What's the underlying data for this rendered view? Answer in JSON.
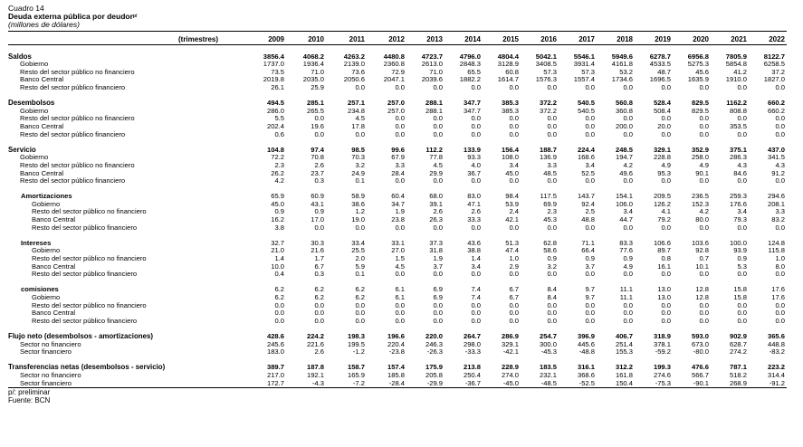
{
  "header": {
    "label": "Cuadro 14",
    "title": "Deuda externa pública por deudor",
    "title_sup": "p/",
    "subtitle": "(millones de dólares)"
  },
  "table": {
    "period_label": "(trimestres)",
    "years": [
      "2009",
      "2010",
      "2011",
      "2012",
      "2013",
      "2014",
      "2015",
      "2016",
      "2017",
      "2018",
      "2019",
      "2020",
      "2021",
      "2022"
    ],
    "rows": [
      {
        "type": "sec",
        "label": "Saldos",
        "values": [
          "3856.4",
          "4068.2",
          "4263.2",
          "4480.8",
          "4723.7",
          "4796.0",
          "4804.4",
          "5042.1",
          "5546.1",
          "5949.6",
          "6278.7",
          "6956.8",
          "7805.9",
          "8122.7"
        ]
      },
      {
        "type": "det",
        "label": "Gobierno",
        "values": [
          "1737.0",
          "1936.4",
          "2139.0",
          "2360.8",
          "2613.0",
          "2848.3",
          "3128.9",
          "3408.5",
          "3931.4",
          "4161.8",
          "4533.5",
          "5275.3",
          "5854.8",
          "6258.5"
        ]
      },
      {
        "type": "det",
        "label": "Resto del sector público no financiero",
        "values": [
          "73.5",
          "71.0",
          "73.6",
          "72.9",
          "71.0",
          "65.5",
          "60.8",
          "57.3",
          "57.3",
          "53.2",
          "48.7",
          "45.6",
          "41.2",
          "37.2"
        ]
      },
      {
        "type": "det",
        "label": "Banco Central",
        "values": [
          "2019.8",
          "2035.0",
          "2050.6",
          "2047.1",
          "2039.6",
          "1882.2",
          "1614.7",
          "1576.3",
          "1557.4",
          "1734.6",
          "1696.5",
          "1635.9",
          "1910.0",
          "1827.0"
        ]
      },
      {
        "type": "det",
        "label": "Resto del sector público financiero",
        "values": [
          "26.1",
          "25.9",
          "0.0",
          "0.0",
          "0.0",
          "0.0",
          "0.0",
          "0.0",
          "0.0",
          "0.0",
          "0.0",
          "0.0",
          "0.0",
          "0.0"
        ]
      },
      {
        "type": "sp"
      },
      {
        "type": "sec",
        "label": "Desembolsos",
        "values": [
          "494.5",
          "285.1",
          "257.1",
          "257.0",
          "288.1",
          "347.7",
          "385.3",
          "372.2",
          "540.5",
          "560.8",
          "528.4",
          "829.5",
          "1162.2",
          "660.2"
        ]
      },
      {
        "type": "det",
        "label": "Gobierno",
        "values": [
          "286.0",
          "265.5",
          "234.8",
          "257.0",
          "288.1",
          "347.7",
          "385.3",
          "372.2",
          "540.5",
          "360.8",
          "508.4",
          "829.5",
          "808.8",
          "660.2"
        ]
      },
      {
        "type": "det",
        "label": "Resto del sector público no financiero",
        "values": [
          "5.5",
          "0.0",
          "4.5",
          "0.0",
          "0.0",
          "0.0",
          "0.0",
          "0.0",
          "0.0",
          "0.0",
          "0.0",
          "0.0",
          "0.0",
          "0.0"
        ]
      },
      {
        "type": "det",
        "label": "Banco Central",
        "values": [
          "202.4",
          "19.6",
          "17.8",
          "0.0",
          "0.0",
          "0.0",
          "0.0",
          "0.0",
          "0.0",
          "200.0",
          "20.0",
          "0.0",
          "353.5",
          "0.0"
        ]
      },
      {
        "type": "det",
        "label": "Resto del sector público financiero",
        "values": [
          "0.6",
          "0.0",
          "0.0",
          "0.0",
          "0.0",
          "0.0",
          "0.0",
          "0.0",
          "0.0",
          "0.0",
          "0.0",
          "0.0",
          "0.0",
          "0.0"
        ]
      },
      {
        "type": "sp"
      },
      {
        "type": "sec",
        "label": "Servicio",
        "values": [
          "104.8",
          "97.4",
          "98.5",
          "99.6",
          "112.2",
          "133.9",
          "156.4",
          "188.7",
          "224.4",
          "248.5",
          "329.1",
          "352.9",
          "375.1",
          "437.0"
        ]
      },
      {
        "type": "det",
        "label": "Gobierno",
        "values": [
          "72.2",
          "70.8",
          "70.3",
          "67.9",
          "77.8",
          "93.3",
          "108.0",
          "136.9",
          "168.6",
          "194.7",
          "228.8",
          "258.0",
          "286.3",
          "341.5"
        ]
      },
      {
        "type": "det",
        "label": "Resto del sector público no financiero",
        "values": [
          "2.3",
          "2.6",
          "3.2",
          "3.3",
          "4.5",
          "4.0",
          "3.4",
          "3.3",
          "3.4",
          "4.2",
          "4.9",
          "4.9",
          "4.3",
          "4.3"
        ]
      },
      {
        "type": "det",
        "label": "Banco Central",
        "values": [
          "26.2",
          "23.7",
          "24.9",
          "28.4",
          "29.9",
          "36.7",
          "45.0",
          "48.5",
          "52.5",
          "49.6",
          "95.3",
          "90.1",
          "84.6",
          "91.2"
        ]
      },
      {
        "type": "det",
        "label": "Resto del sector público financiero",
        "values": [
          "4.2",
          "0.3",
          "0.1",
          "0.0",
          "0.0",
          "0.0",
          "0.0",
          "0.0",
          "0.0",
          "0.0",
          "0.0",
          "0.0",
          "0.0",
          "0.0"
        ]
      },
      {
        "type": "sp"
      },
      {
        "type": "sub",
        "label": "Amortizaciones",
        "values": [
          "65.9",
          "60.9",
          "58.9",
          "60.4",
          "68.0",
          "83.0",
          "98.4",
          "117.5",
          "143.7",
          "154.1",
          "209.5",
          "236.5",
          "259.3",
          "294.6"
        ]
      },
      {
        "type": "det2",
        "label": "Gobierno",
        "values": [
          "45.0",
          "43.1",
          "38.6",
          "34.7",
          "39.1",
          "47.1",
          "53.9",
          "69.9",
          "92.4",
          "106.0",
          "126.2",
          "152.3",
          "176.6",
          "208.1"
        ]
      },
      {
        "type": "det2",
        "label": "Resto del sector público no financiero",
        "values": [
          "0.9",
          "0.9",
          "1.2",
          "1.9",
          "2.6",
          "2.6",
          "2.4",
          "2.3",
          "2.5",
          "3.4",
          "4.1",
          "4.2",
          "3.4",
          "3.3"
        ]
      },
      {
        "type": "det2",
        "label": "Banco Central",
        "values": [
          "16.2",
          "17.0",
          "19.0",
          "23.8",
          "26.3",
          "33.3",
          "42.1",
          "45.3",
          "48.8",
          "44.7",
          "79.2",
          "80.0",
          "79.3",
          "83.2"
        ]
      },
      {
        "type": "det2",
        "label": "Resto del sector público financiero",
        "values": [
          "3.8",
          "0.0",
          "0.0",
          "0.0",
          "0.0",
          "0.0",
          "0.0",
          "0.0",
          "0.0",
          "0.0",
          "0.0",
          "0.0",
          "0.0",
          "0.0"
        ]
      },
      {
        "type": "sp"
      },
      {
        "type": "sub",
        "label": "Intereses",
        "values": [
          "32.7",
          "30.3",
          "33.4",
          "33.1",
          "37.3",
          "43.6",
          "51.3",
          "62.8",
          "71.1",
          "83.3",
          "106.6",
          "103.6",
          "100.0",
          "124.8"
        ]
      },
      {
        "type": "det2",
        "label": "Gobierno",
        "values": [
          "21.0",
          "21.6",
          "25.5",
          "27.0",
          "31.8",
          "38.8",
          "47.4",
          "58.6",
          "66.4",
          "77.6",
          "89.7",
          "92.8",
          "93.9",
          "115.8"
        ]
      },
      {
        "type": "det2",
        "label": "Resto del sector público no financiero",
        "values": [
          "1.4",
          "1.7",
          "2.0",
          "1.5",
          "1.9",
          "1.4",
          "1.0",
          "0.9",
          "0.9",
          "0.9",
          "0.8",
          "0.7",
          "0.9",
          "1.0"
        ]
      },
      {
        "type": "det2",
        "label": "Banco Central",
        "values": [
          "10.0",
          "6.7",
          "5.9",
          "4.5",
          "3.7",
          "3.4",
          "2.9",
          "3.2",
          "3.7",
          "4.9",
          "16.1",
          "10.1",
          "5.3",
          "8.0"
        ]
      },
      {
        "type": "det2",
        "label": "Resto del sector público financiero",
        "values": [
          "0.4",
          "0.3",
          "0.1",
          "0.0",
          "0.0",
          "0.0",
          "0.0",
          "0.0",
          "0.0",
          "0.0",
          "0.0",
          "0.0",
          "0.0",
          "0.0"
        ]
      },
      {
        "type": "sp"
      },
      {
        "type": "sub",
        "label": "comisiones",
        "values": [
          "6.2",
          "6.2",
          "6.2",
          "6.1",
          "6.9",
          "7.4",
          "6.7",
          "8.4",
          "9.7",
          "11.1",
          "13.0",
          "12.8",
          "15.8",
          "17.6"
        ]
      },
      {
        "type": "det2",
        "label": "Gobierno",
        "values": [
          "6.2",
          "6.2",
          "6.2",
          "6.1",
          "6.9",
          "7.4",
          "6.7",
          "8.4",
          "9.7",
          "11.1",
          "13.0",
          "12.8",
          "15.8",
          "17.6"
        ]
      },
      {
        "type": "det2",
        "label": "Resto del sector público no financiero",
        "values": [
          "0.0",
          "0.0",
          "0.0",
          "0.0",
          "0.0",
          "0.0",
          "0.0",
          "0.0",
          "0.0",
          "0.0",
          "0.0",
          "0.0",
          "0.0",
          "0.0"
        ]
      },
      {
        "type": "det2",
        "label": "Banco Central",
        "values": [
          "0.0",
          "0.0",
          "0.0",
          "0.0",
          "0.0",
          "0.0",
          "0.0",
          "0.0",
          "0.0",
          "0.0",
          "0.0",
          "0.0",
          "0.0",
          "0.0"
        ]
      },
      {
        "type": "det2",
        "label": "Resto del sector público financiero",
        "values": [
          "0.0",
          "0.0",
          "0.0",
          "0.0",
          "0.0",
          "0.0",
          "0.0",
          "0.0",
          "0.0",
          "0.0",
          "0.0",
          "0.0",
          "0.0",
          "0.0"
        ]
      },
      {
        "type": "sp"
      },
      {
        "type": "sec",
        "label": "Flujo neto (desembolsos - amortizaciones)",
        "values": [
          "428.6",
          "224.2",
          "198.3",
          "196.6",
          "220.0",
          "264.7",
          "286.9",
          "254.7",
          "396.9",
          "406.7",
          "318.9",
          "593.0",
          "902.9",
          "365.6"
        ]
      },
      {
        "type": "det",
        "label": "Sector no financiero",
        "values": [
          "245.6",
          "221.6",
          "199.5",
          "220.4",
          "246.3",
          "298.0",
          "329.1",
          "300.0",
          "445.6",
          "251.4",
          "378.1",
          "673.0",
          "628.7",
          "448.8"
        ]
      },
      {
        "type": "det",
        "label": "Sector financiero",
        "values": [
          "183.0",
          "2.6",
          "-1.2",
          "-23.8",
          "-26.3",
          "-33.3",
          "-42.1",
          "-45.3",
          "-48.8",
          "155.3",
          "-59.2",
          "-80.0",
          "274.2",
          "-83.2"
        ]
      },
      {
        "type": "sp"
      },
      {
        "type": "sec",
        "label": "Transferencias netas (desembolsos - servicio)",
        "values": [
          "389.7",
          "187.8",
          "158.7",
          "157.4",
          "175.9",
          "213.8",
          "228.9",
          "183.5",
          "316.1",
          "312.2",
          "199.3",
          "476.6",
          "787.1",
          "223.2"
        ]
      },
      {
        "type": "det",
        "label": "Sector no financiero",
        "values": [
          "217.0",
          "192.1",
          "165.9",
          "185.8",
          "205.8",
          "250.4",
          "274.0",
          "232.1",
          "368.6",
          "161.8",
          "274.6",
          "566.7",
          "518.2",
          "314.4"
        ]
      },
      {
        "type": "det",
        "label": "Sector financiero",
        "values": [
          "172.7",
          "-4.3",
          "-7.2",
          "-28.4",
          "-29.9",
          "-36.7",
          "-45.0",
          "-48.5",
          "-52.5",
          "150.4",
          "-75.3",
          "-90.1",
          "268.9",
          "-91.2"
        ]
      }
    ]
  },
  "footnotes": [
    "p/: preliminar",
    "Fuente: BCN"
  ]
}
